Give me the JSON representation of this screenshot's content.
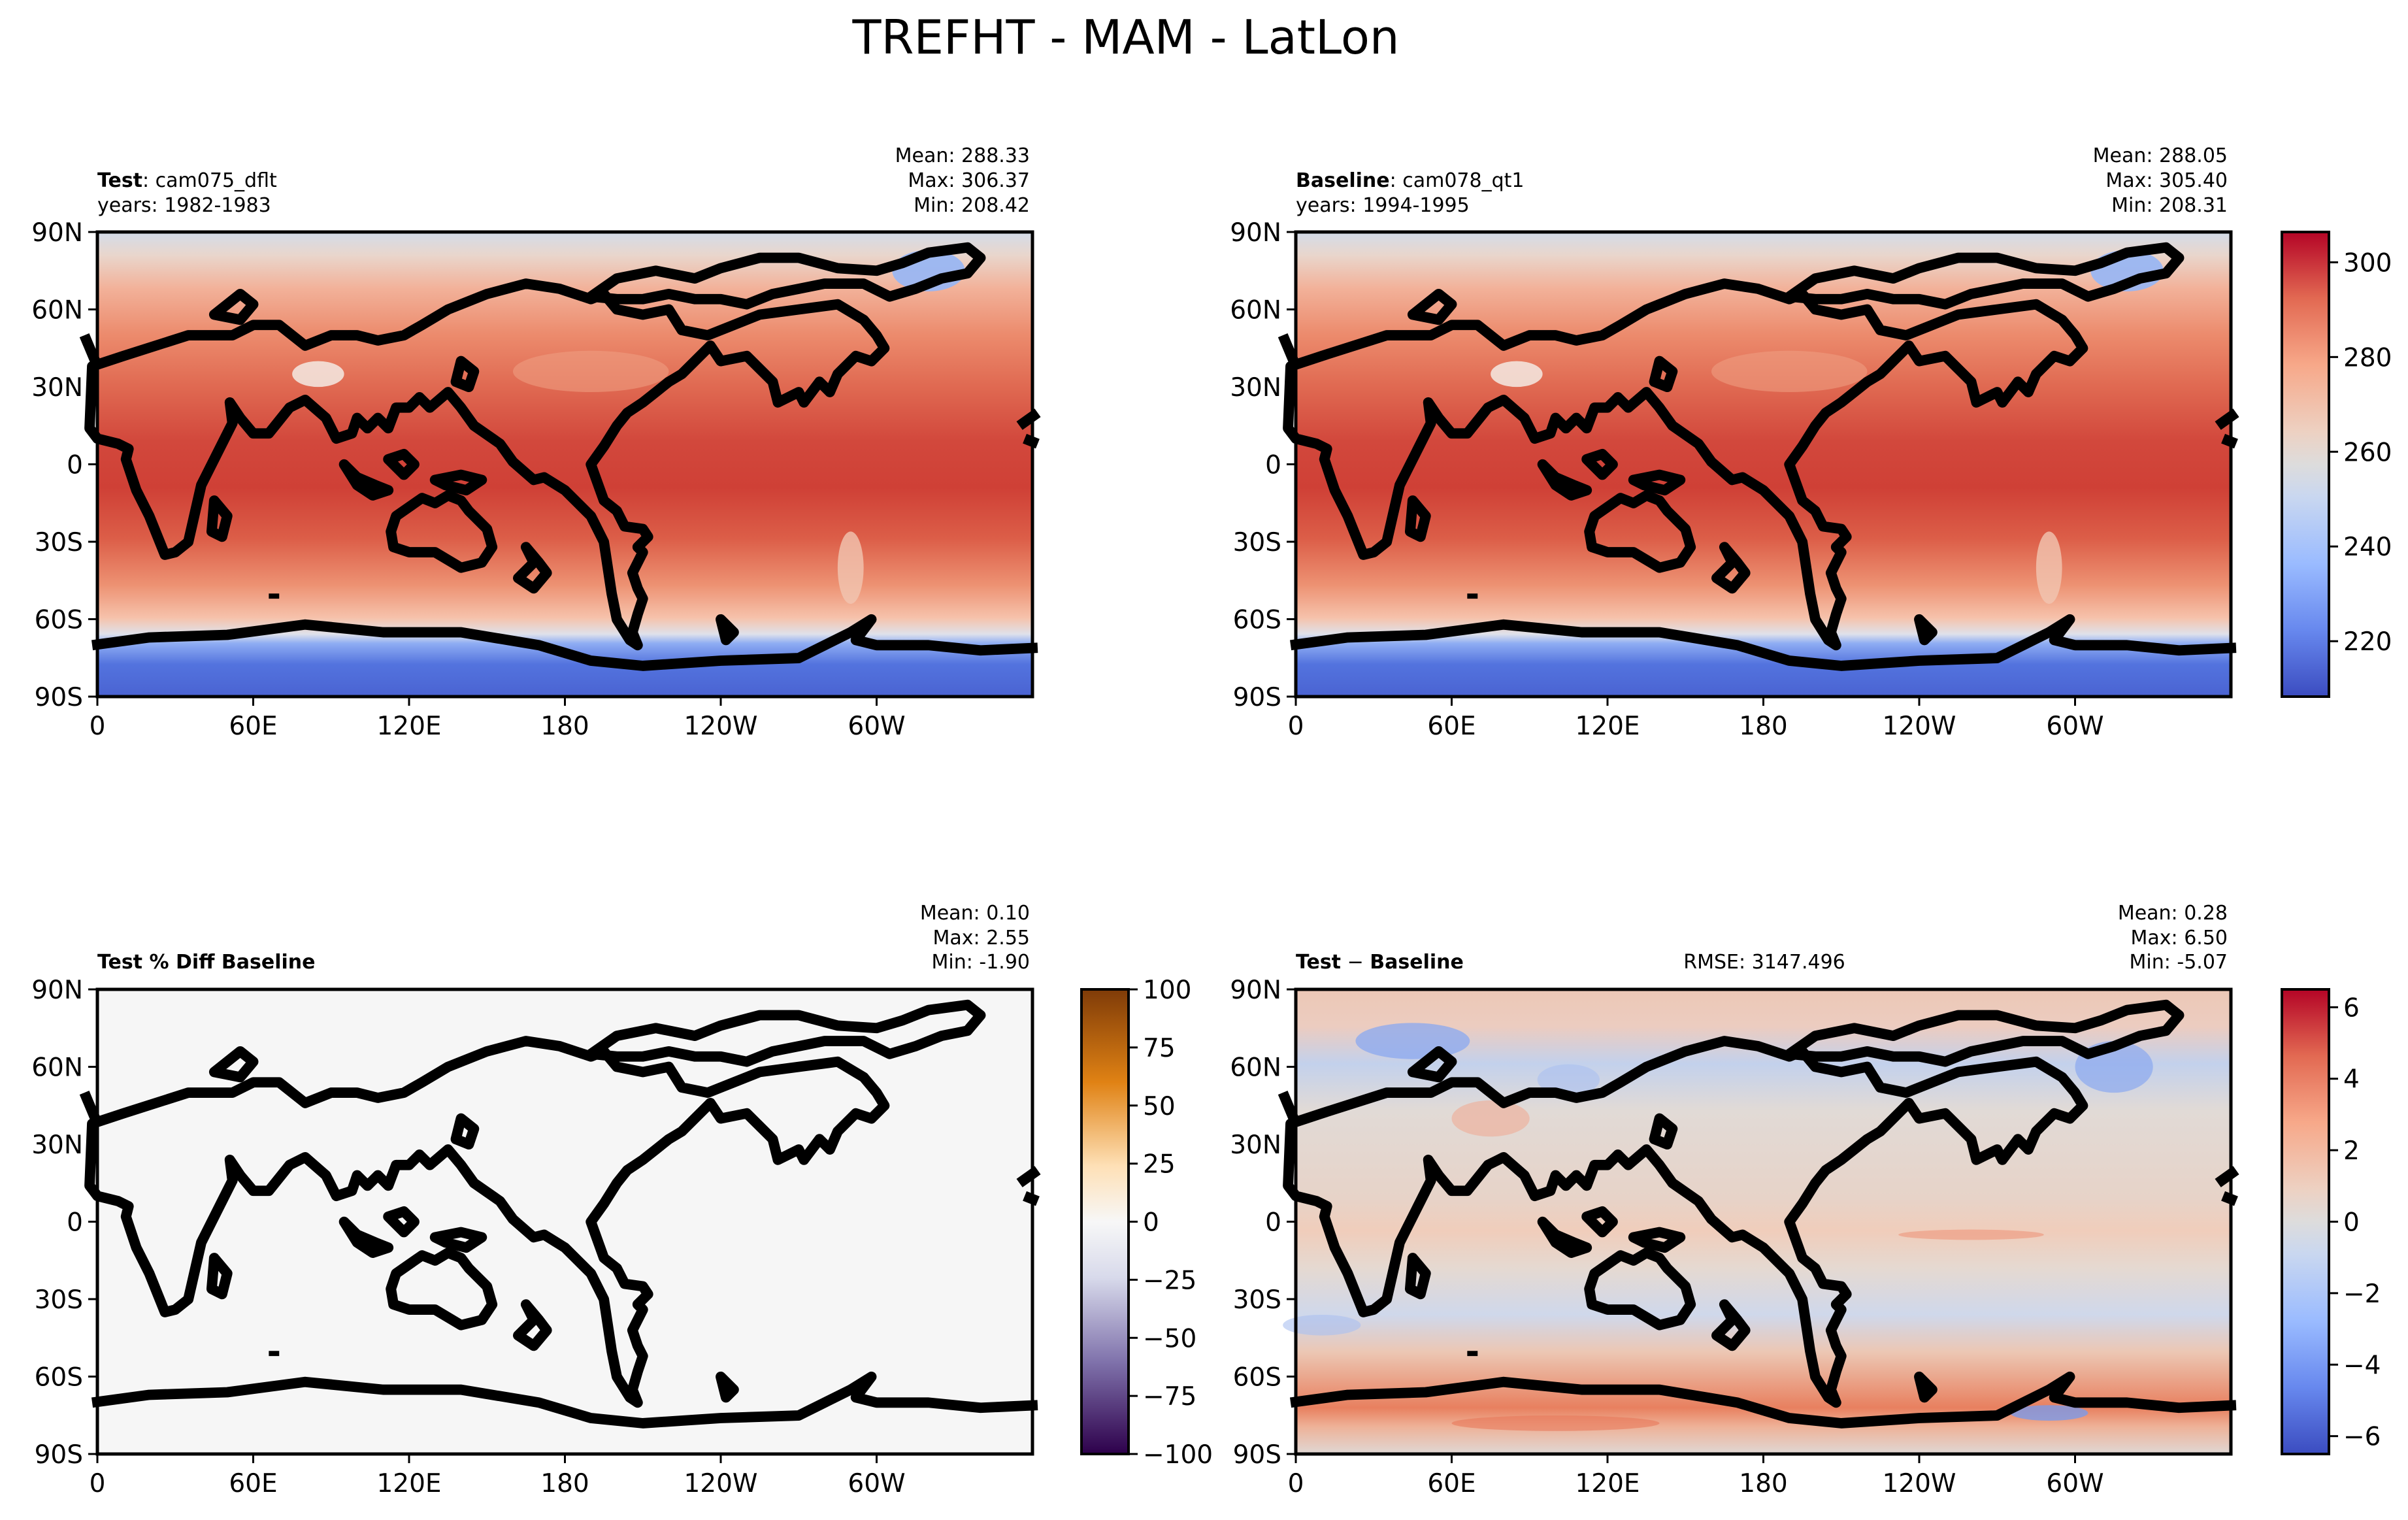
{
  "figure": {
    "title": "TREFHT - MAM - LatLon"
  },
  "colors": {
    "coolwarm": [
      "#3b4cc0",
      "#6788ee",
      "#9abbff",
      "#c9d7f0",
      "#edd1c2",
      "#f7a889",
      "#e26952",
      "#b40426"
    ],
    "puor": [
      "#2d004b",
      "#8073ac",
      "#d8daeb",
      "#f7f7f7",
      "#fee0b6",
      "#e08214",
      "#7f3b08"
    ],
    "warm_fill": "#dd5b4a",
    "cold_fill": "#5a7ae0",
    "pct_fill": "#f6f6f6"
  },
  "axes_ticks": {
    "lon": [
      "0",
      "60E",
      "120E",
      "180",
      "120W",
      "60W"
    ],
    "lat": [
      "90N",
      "60N",
      "30N",
      "0",
      "30S",
      "60S",
      "90S"
    ]
  },
  "chart_data": [
    {
      "type": "heatmap",
      "panel": "test",
      "label_bold": "Test",
      "label_rest": ": cam075_dflt",
      "years": "years: 1982-1983",
      "stats": {
        "mean": "Mean: 288.33",
        "max": "Max: 306.37",
        "min": "Min: 208.42"
      },
      "variable": "TREFHT",
      "season": "MAM",
      "xlim": [
        0,
        360
      ],
      "ylim": [
        -90,
        90
      ]
    },
    {
      "type": "heatmap",
      "panel": "baseline",
      "label_bold": "Baseline",
      "label_rest": ": cam078_qt1",
      "years": "years: 1994-1995",
      "stats": {
        "mean": "Mean: 288.05",
        "max": "Max: 305.40",
        "min": "Min: 208.31"
      },
      "xlim": [
        0,
        360
      ],
      "ylim": [
        -90,
        90
      ],
      "colorbar": {
        "range": [
          208.3,
          306.4
        ],
        "ticks": [
          "300",
          "280",
          "260",
          "240",
          "220"
        ],
        "tick_values": [
          300,
          280,
          260,
          240,
          220
        ]
      }
    },
    {
      "type": "heatmap",
      "panel": "pct_diff",
      "label_bold": "Test % Diff Baseline",
      "stats": {
        "mean": "Mean:  0.10",
        "max": "Max:  2.55",
        "min": "Min: -1.90"
      },
      "xlim": [
        0,
        360
      ],
      "ylim": [
        -90,
        90
      ],
      "colorbar": {
        "range": [
          -100,
          100
        ],
        "ticks": [
          "100",
          "75",
          "50",
          "25",
          "0",
          "−25",
          "−50",
          "−75",
          "−100"
        ],
        "tick_values": [
          100,
          75,
          50,
          25,
          0,
          -25,
          -50,
          -75,
          -100
        ]
      }
    },
    {
      "type": "heatmap",
      "panel": "diff",
      "label_bold": "Test",
      "label_rest": " − Baseline",
      "label_bold2": "Baseline",
      "rmse": "RMSE: 3147.496",
      "stats": {
        "mean": "Mean:  0.28",
        "max": "Max:  6.50",
        "min": "Min: -5.07"
      },
      "xlim": [
        0,
        360
      ],
      "ylim": [
        -90,
        90
      ],
      "colorbar": {
        "range": [
          -6.5,
          6.5
        ],
        "ticks": [
          "6",
          "4",
          "2",
          "0",
          "−2",
          "−4",
          "−6"
        ],
        "tick_values": [
          6,
          4,
          2,
          0,
          -2,
          -4,
          -6
        ]
      }
    }
  ]
}
